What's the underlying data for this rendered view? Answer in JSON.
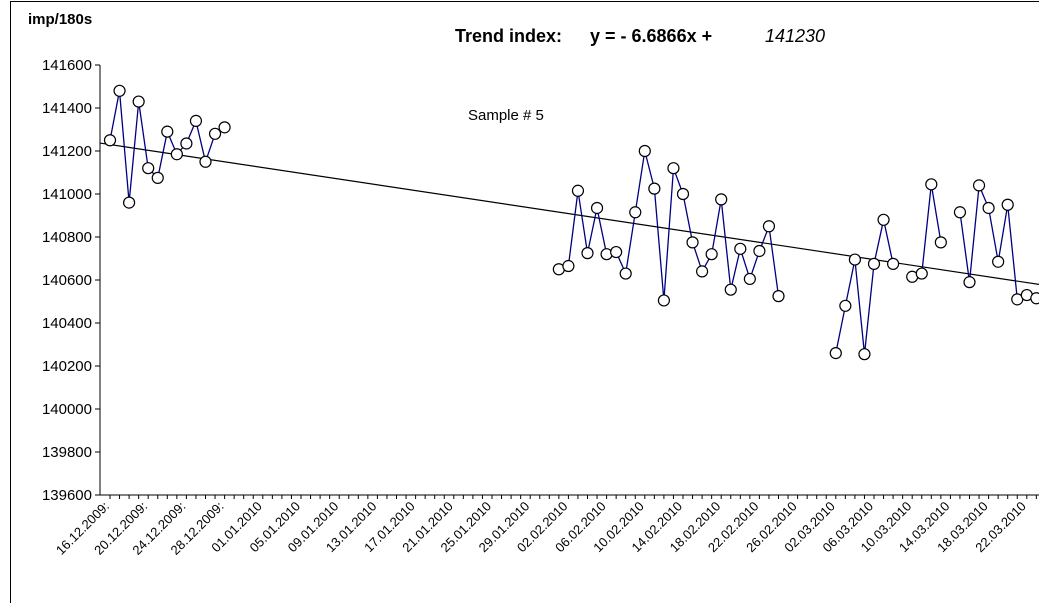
{
  "chart_data": {
    "type": "line",
    "title": "Trend index:",
    "y_axis_label": "imp/180s",
    "annotation": "Sample # 5",
    "trend": {
      "label": "y = - 6.6866x +",
      "slope": -6.6866,
      "intercept": 141230
    },
    "categories": [
      "16.12.2009:",
      null,
      null,
      null,
      "20.12.2009:",
      null,
      null,
      null,
      "24.12.2009:",
      null,
      null,
      null,
      "28.12.2009:",
      null,
      null,
      null,
      "01.01.2010",
      null,
      null,
      null,
      "05.01.2010",
      null,
      null,
      null,
      "09.01.2010",
      null,
      null,
      null,
      "13.01.2010",
      null,
      null,
      null,
      "17.01.2010",
      null,
      null,
      null,
      "21.01.2010",
      null,
      null,
      null,
      "25.01.2010",
      null,
      null,
      null,
      "29.01.2010",
      null,
      null,
      null,
      "02.02.2010",
      null,
      null,
      null,
      "06.02.2010",
      null,
      null,
      null,
      "10.02.2010",
      null,
      null,
      null,
      "14.02.2010",
      null,
      null,
      null,
      "18.02.2010",
      null,
      null,
      null,
      "22.02.2010",
      null,
      null,
      null,
      "26.02.2010",
      null,
      null,
      null,
      "02.03.2010",
      null,
      null,
      null,
      "06.03.2010",
      null,
      null,
      null,
      "10.03.2010",
      null,
      null,
      null,
      "14.03.2010",
      null,
      null,
      null,
      "18.03.2010",
      null,
      null,
      null,
      "22.03.2010",
      null
    ],
    "series": [
      {
        "color": "#000080",
        "values": [
          141250,
          141480,
          140960,
          141430,
          141120,
          141075,
          141290,
          141185,
          141235,
          141340,
          141150,
          141280,
          141310,
          null,
          null,
          null,
          null,
          null,
          null,
          null,
          null,
          null,
          null,
          null,
          null,
          null,
          null,
          null,
          null,
          null,
          null,
          null,
          null,
          null,
          null,
          null,
          null,
          null,
          null,
          null,
          null,
          null,
          null,
          null,
          null,
          null,
          null,
          140650,
          140665,
          141015,
          140725,
          140935,
          140720,
          140730,
          140630,
          140915,
          141200,
          141025,
          140505,
          141120,
          141000,
          140775,
          140640,
          140720,
          140975,
          140555,
          140745,
          140605,
          140735,
          140850,
          140525,
          null,
          null,
          null,
          null,
          null,
          140260,
          140480,
          140695,
          140255,
          140675,
          140880,
          140675,
          null,
          140615,
          140630,
          141045,
          140775,
          null,
          140915,
          140590,
          141040,
          140935,
          140685,
          140950,
          140510,
          140530,
          140515
        ]
      }
    ],
    "ylim": [
      139600,
      141600
    ],
    "yticks": [
      139600,
      139800,
      140000,
      140200,
      140400,
      140600,
      140800,
      141000,
      141200,
      141400,
      141600
    ],
    "grid": false
  }
}
